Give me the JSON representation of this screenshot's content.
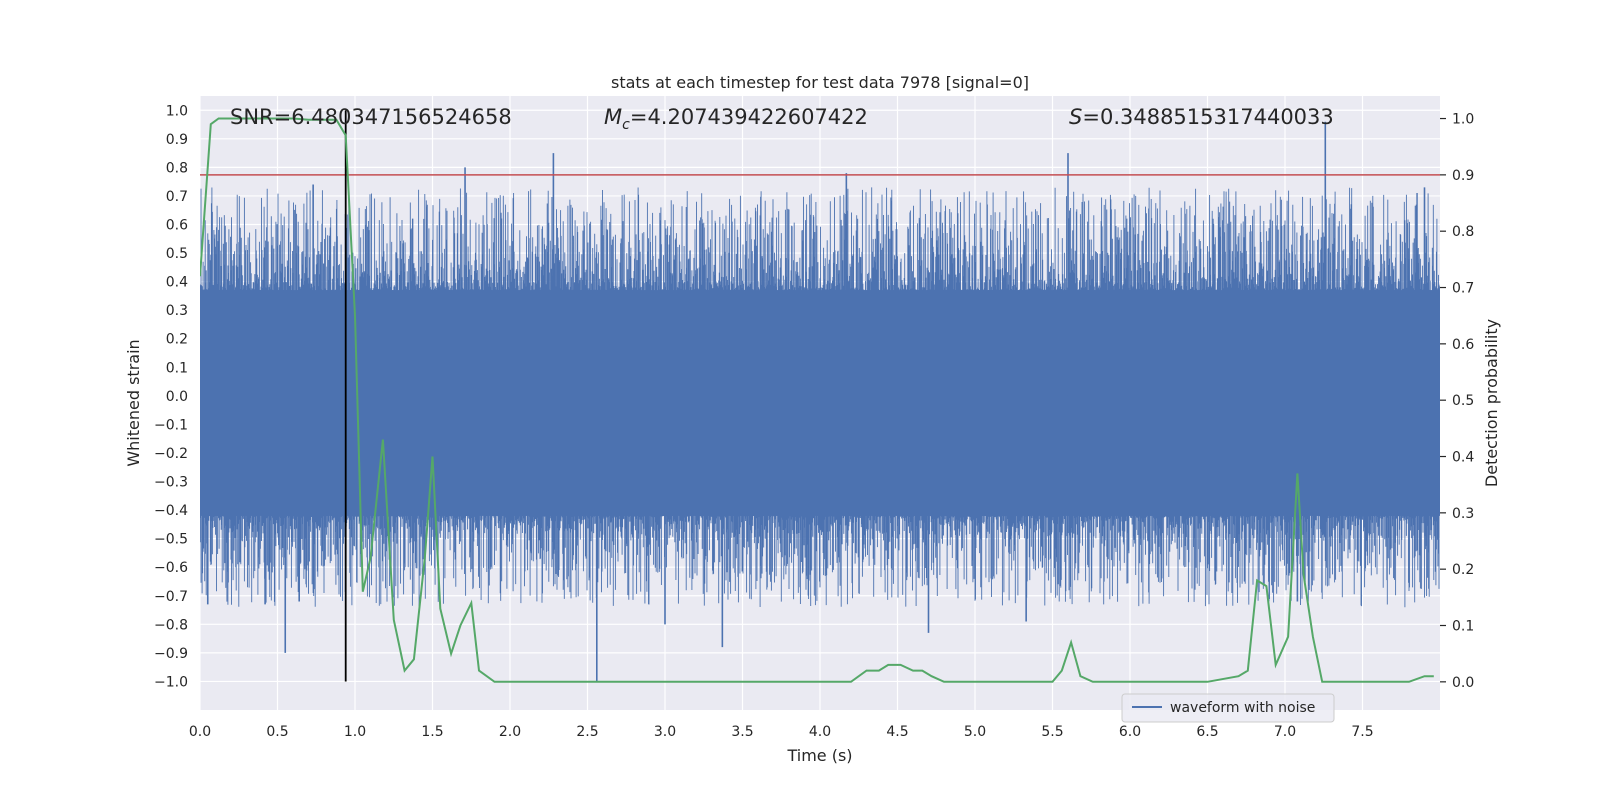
{
  "chart_data": {
    "type": "line",
    "title": "stats at each timestep for test data 7978 [signal=0]",
    "xlabel": "Time (s)",
    "ylabel": "Whitened strain",
    "y2label": "Detection probability",
    "xlim": [
      0,
      8
    ],
    "ylim": [
      -1.1,
      1.05
    ],
    "y2lim": [
      -0.05,
      1.04
    ],
    "xticks": [
      "0.0",
      "0.5",
      "1.0",
      "1.5",
      "2.0",
      "2.5",
      "3.0",
      "3.5",
      "4.0",
      "4.5",
      "5.0",
      "5.5",
      "6.0",
      "6.5",
      "7.0",
      "7.5"
    ],
    "yticks": [
      "1.0",
      "0.9",
      "0.8",
      "0.7",
      "0.6",
      "0.5",
      "0.4",
      "0.3",
      "0.2",
      "0.1",
      "0.0",
      "-0.1",
      "-0.2",
      "-0.3",
      "-0.4",
      "-0.5",
      "-0.6",
      "-0.7",
      "-0.8",
      "-0.9",
      "-1.0"
    ],
    "y2ticks": [
      "1.0",
      "0.9",
      "0.8",
      "0.7",
      "0.6",
      "0.5",
      "0.4",
      "0.3",
      "0.2",
      "0.1",
      "0.0"
    ],
    "grid": true,
    "legend_position": "lower-right",
    "annotations": {
      "snr": "SNR=6.480347156524658",
      "mc": "4.207439422607422",
      "s": "0.3488515317440033",
      "mc_symbol": "M",
      "mc_subscript": "c",
      "s_symbol": "S"
    },
    "vline_x": 0.94,
    "threshold_y2": 0.9,
    "colors": {
      "waveform": "#4c72b0",
      "probability": "#55a868",
      "threshold": "#c44e52",
      "vline": "#000000",
      "bg": "#eaeaf2"
    },
    "series": [
      {
        "name": "waveform with noise",
        "kind": "waveform",
        "envelope": {
          "core_top": 0.37,
          "core_bottom": -0.42,
          "max_peak": 0.96,
          "min_trough": -1.0
        },
        "spikes": [
          {
            "x": 0.55,
            "y": -0.9
          },
          {
            "x": 0.42,
            "y": -0.73
          },
          {
            "x": 0.05,
            "y": -0.73
          },
          {
            "x": 0.64,
            "y": -0.72
          },
          {
            "x": 0.73,
            "y": 0.74
          },
          {
            "x": 1.71,
            "y": 0.8
          },
          {
            "x": 2.28,
            "y": 0.85
          },
          {
            "x": 2.56,
            "y": -1.0
          },
          {
            "x": 3.0,
            "y": -0.8
          },
          {
            "x": 3.37,
            "y": -0.88
          },
          {
            "x": 4.17,
            "y": 0.78
          },
          {
            "x": 4.7,
            "y": -0.83
          },
          {
            "x": 5.6,
            "y": 0.85
          },
          {
            "x": 5.33,
            "y": -0.79
          },
          {
            "x": 7.26,
            "y": 0.96
          },
          {
            "x": 7.9,
            "y": 0.73
          },
          {
            "x": 7.08,
            "y": -0.72
          }
        ]
      },
      {
        "name": "",
        "kind": "probability",
        "x": [
          0,
          0.07,
          0.12,
          0.2,
          0.3,
          0.4,
          0.5,
          0.6,
          0.7,
          0.8,
          0.88,
          0.94,
          1.0,
          1.05,
          1.1,
          1.18,
          1.25,
          1.32,
          1.38,
          1.45,
          1.5,
          1.55,
          1.62,
          1.68,
          1.75,
          1.8,
          1.9,
          2.0,
          2.2,
          2.4,
          2.6,
          2.8,
          3.0,
          3.2,
          3.5,
          3.8,
          4.0,
          4.2,
          4.3,
          4.38,
          4.44,
          4.52,
          4.6,
          4.66,
          4.72,
          4.8,
          5.0,
          5.3,
          5.5,
          5.56,
          5.62,
          5.68,
          5.76,
          5.9,
          6.2,
          6.5,
          6.7,
          6.76,
          6.82,
          6.88,
          6.94,
          7.02,
          7.08,
          7.12,
          7.18,
          7.24,
          7.3,
          7.4,
          7.6,
          7.8,
          7.9,
          7.96
        ],
        "y": [
          0.72,
          0.99,
          1.0,
          1.0,
          1.0,
          1.0,
          1.0,
          1.0,
          0.998,
          0.998,
          0.998,
          0.97,
          0.65,
          0.16,
          0.22,
          0.43,
          0.11,
          0.02,
          0.04,
          0.22,
          0.4,
          0.13,
          0.05,
          0.1,
          0.14,
          0.02,
          0.0,
          0.0,
          0.0,
          0.0,
          0.0,
          0.0,
          0.0,
          0.0,
          0.0,
          0.0,
          0.0,
          0.0,
          0.02,
          0.02,
          0.03,
          0.03,
          0.02,
          0.02,
          0.01,
          0.0,
          0.0,
          0.0,
          0.0,
          0.02,
          0.07,
          0.01,
          0.0,
          0.0,
          0.0,
          0.0,
          0.01,
          0.02,
          0.18,
          0.17,
          0.03,
          0.08,
          0.37,
          0.19,
          0.08,
          0.0,
          0.0,
          0.0,
          0.0,
          0.0,
          0.01,
          0.01
        ]
      }
    ]
  }
}
